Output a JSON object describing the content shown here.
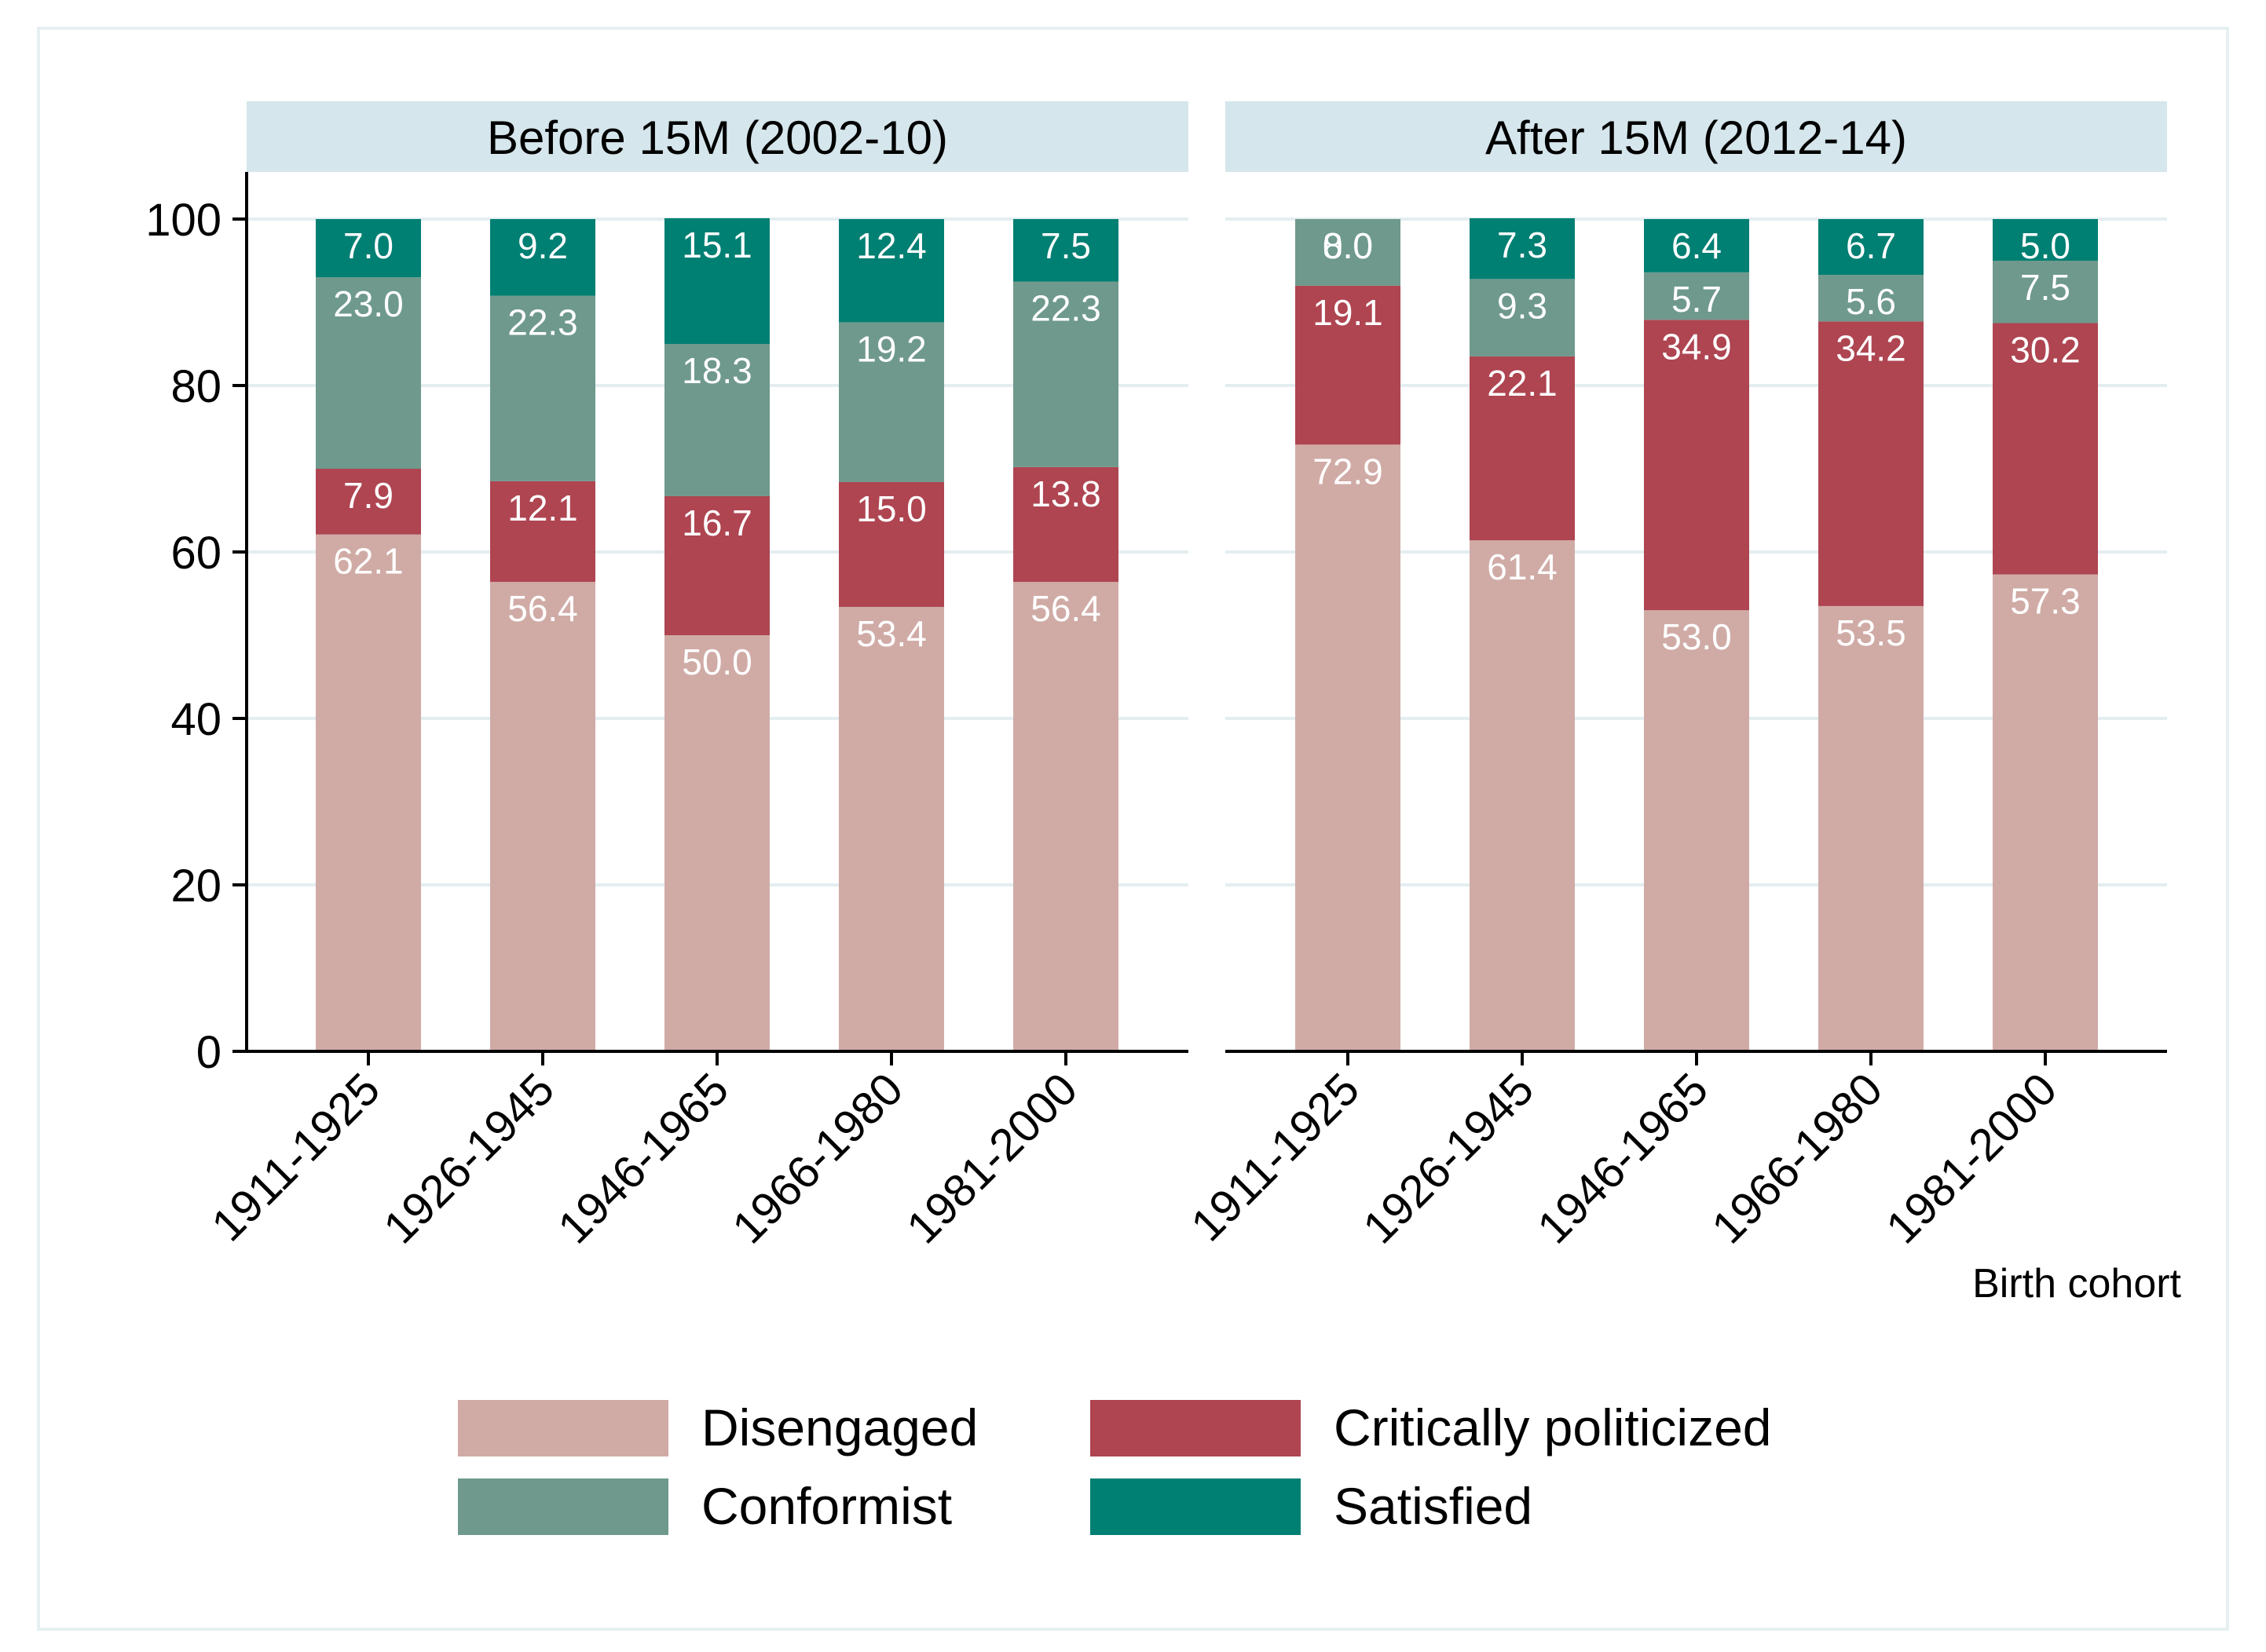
{
  "chart_data": {
    "type": "bar",
    "stacked": true,
    "xlabel": "Birth cohort",
    "ylabel": "",
    "ylim": [
      0,
      100
    ],
    "yticks": [
      0,
      20,
      40,
      60,
      80,
      100
    ],
    "grid": true,
    "legend_position": "bottom",
    "categories": [
      "1911-1925",
      "1926-1945",
      "1946-1965",
      "1966-1980",
      "1981-2000"
    ],
    "series_meta": [
      {
        "name": "Disengaged",
        "color": "#d0aba6",
        "label_color": "#ffffff"
      },
      {
        "name": "Critically politicized",
        "color": "#ae4551",
        "label_color": "#ffffff"
      },
      {
        "name": "Conformist",
        "color": "#6f998d",
        "label_color": "#ffffff"
      },
      {
        "name": "Satisfied",
        "color": "#007f73",
        "label_color": "#ffffff"
      }
    ],
    "panels": [
      {
        "title": "Before 15M (2002-10)",
        "series": [
          {
            "name": "Disengaged",
            "values": [
              62.1,
              56.4,
              50.0,
              53.4,
              56.4
            ],
            "labels": [
              "62.1",
              "56.4",
              "50.0",
              "53.4",
              "56.4"
            ]
          },
          {
            "name": "Critically politicized",
            "values": [
              7.9,
              12.1,
              16.7,
              15.0,
              13.8
            ],
            "labels": [
              "7.9",
              "12.1",
              "16.7",
              "15.0",
              "13.8"
            ]
          },
          {
            "name": "Conformist",
            "values": [
              23.0,
              22.3,
              18.3,
              19.2,
              22.3
            ],
            "labels": [
              "23.0",
              "22.3",
              "18.3",
              "19.2",
              "22.3"
            ]
          },
          {
            "name": "Satisfied",
            "values": [
              7.0,
              9.2,
              15.1,
              12.4,
              7.5
            ],
            "labels": [
              "7.0",
              "9.2",
              "15.1",
              "12.4",
              "7.5"
            ]
          }
        ]
      },
      {
        "title": "After 15M (2012-14)",
        "series": [
          {
            "name": "Disengaged",
            "values": [
              72.9,
              61.4,
              53.0,
              53.5,
              57.3
            ],
            "labels": [
              "72.9",
              "61.4",
              "53.0",
              "53.5",
              "57.3"
            ]
          },
          {
            "name": "Critically politicized",
            "values": [
              19.1,
              22.1,
              34.9,
              34.2,
              30.2
            ],
            "labels": [
              "19.1",
              "22.1",
              "34.9",
              "34.2",
              "30.2"
            ]
          },
          {
            "name": "Conformist",
            "values": [
              8.0,
              9.3,
              5.7,
              5.6,
              7.5
            ],
            "labels": [
              "8.0",
              "9.3",
              "5.7",
              "5.6",
              "7.5"
            ]
          },
          {
            "name": "Satisfied",
            "values": [
              0.0,
              7.3,
              6.4,
              6.7,
              5.0
            ],
            "labels": [
              "0.0",
              "7.3",
              "6.4",
              "6.7",
              "5.0"
            ]
          }
        ]
      }
    ],
    "legend": [
      "Disengaged",
      "Critically politicized",
      "Conformist",
      "Satisfied"
    ],
    "colors": {
      "panel_header": "#d5e6ec",
      "grid": "#e4eef1",
      "axis": "#000000",
      "frame": "#e6f0f1"
    }
  }
}
